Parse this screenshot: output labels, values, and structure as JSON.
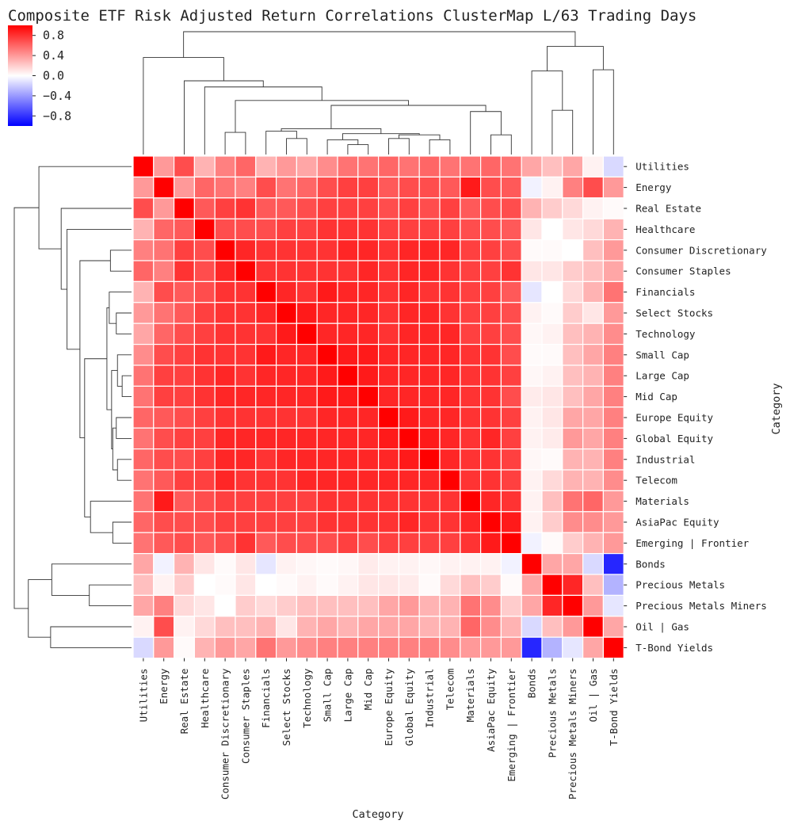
{
  "chart_data": {
    "type": "heatmap",
    "title": "Composite ETF Risk Adjusted Return Correlations ClusterMap L/63 Trading Days",
    "xlabel": "Category",
    "ylabel": "Category",
    "colormap": "bwr",
    "vmin": -1,
    "vmax": 1,
    "colorbar_ticks": [
      "0.8",
      "0.4",
      "0.0",
      "−0.4",
      "−0.8"
    ],
    "colorbar_values": [
      0.8,
      0.4,
      0.0,
      -0.4,
      -0.8
    ],
    "colors": {
      "negative": "#0000ff",
      "neutral": "#ffffff",
      "positive": "#ff0000"
    },
    "categories": [
      "Utilities",
      "Energy",
      "Real Estate",
      "Healthcare",
      "Consumer Discretionary",
      "Consumer Staples",
      "Financials",
      "Select Stocks",
      "Technology",
      "Small Cap",
      "Large Cap",
      "Mid Cap",
      "Europe Equity",
      "Global Equity",
      "Industrial",
      "Telecom",
      "Materials",
      "AsiaPac Equity",
      "Emerging | Frontier",
      "Bonds",
      "Precious Metals",
      "Precious Metals Miners",
      "Oil | Gas",
      "T-Bond Yields"
    ],
    "matrix": [
      [
        1.0,
        0.4,
        0.7,
        0.3,
        0.5,
        0.6,
        0.3,
        0.4,
        0.35,
        0.45,
        0.55,
        0.55,
        0.6,
        0.55,
        0.6,
        0.55,
        0.55,
        0.6,
        0.55,
        0.35,
        0.25,
        0.35,
        0.05,
        -0.15
      ],
      [
        0.4,
        1.0,
        0.4,
        0.6,
        0.55,
        0.5,
        0.7,
        0.55,
        0.6,
        0.7,
        0.75,
        0.75,
        0.65,
        0.7,
        0.7,
        0.65,
        0.9,
        0.7,
        0.65,
        -0.05,
        0.05,
        0.5,
        0.7,
        0.4
      ],
      [
        0.7,
        0.4,
        1.0,
        0.65,
        0.75,
        0.8,
        0.65,
        0.65,
        0.7,
        0.75,
        0.75,
        0.75,
        0.7,
        0.75,
        0.7,
        0.75,
        0.65,
        0.7,
        0.7,
        0.3,
        0.2,
        0.15,
        0.05,
        0.02
      ],
      [
        0.3,
        0.6,
        0.65,
        1.0,
        0.7,
        0.7,
        0.7,
        0.75,
        0.75,
        0.8,
        0.8,
        0.8,
        0.75,
        0.75,
        0.75,
        0.75,
        0.7,
        0.7,
        0.65,
        0.1,
        0.0,
        0.1,
        0.15,
        0.3
      ],
      [
        0.5,
        0.55,
        0.75,
        0.7,
        1.0,
        0.85,
        0.8,
        0.8,
        0.8,
        0.8,
        0.85,
        0.85,
        0.8,
        0.85,
        0.85,
        0.85,
        0.75,
        0.75,
        0.7,
        0.02,
        0.02,
        0.0,
        0.25,
        0.4
      ],
      [
        0.6,
        0.5,
        0.8,
        0.7,
        0.85,
        1.0,
        0.8,
        0.8,
        0.8,
        0.8,
        0.8,
        0.85,
        0.8,
        0.85,
        0.85,
        0.8,
        0.75,
        0.75,
        0.8,
        0.1,
        0.1,
        0.2,
        0.25,
        0.35
      ],
      [
        0.3,
        0.7,
        0.65,
        0.7,
        0.8,
        0.8,
        1.0,
        0.85,
        0.8,
        0.9,
        0.85,
        0.85,
        0.8,
        0.85,
        0.8,
        0.8,
        0.75,
        0.75,
        0.65,
        -0.1,
        0.0,
        0.15,
        0.3,
        0.55
      ],
      [
        0.4,
        0.55,
        0.65,
        0.75,
        0.8,
        0.8,
        0.85,
        1.0,
        0.9,
        0.85,
        0.85,
        0.85,
        0.8,
        0.85,
        0.85,
        0.8,
        0.75,
        0.75,
        0.7,
        0.05,
        0.02,
        0.2,
        0.1,
        0.4
      ],
      [
        0.35,
        0.6,
        0.7,
        0.75,
        0.8,
        0.8,
        0.8,
        0.9,
        1.0,
        0.85,
        0.85,
        0.85,
        0.8,
        0.85,
        0.85,
        0.85,
        0.75,
        0.75,
        0.7,
        0.03,
        0.05,
        0.25,
        0.3,
        0.45
      ],
      [
        0.45,
        0.7,
        0.75,
        0.8,
        0.8,
        0.8,
        0.9,
        0.85,
        0.85,
        1.0,
        0.9,
        0.9,
        0.85,
        0.85,
        0.85,
        0.85,
        0.8,
        0.8,
        0.7,
        0.02,
        0.02,
        0.25,
        0.35,
        0.5
      ],
      [
        0.55,
        0.75,
        0.75,
        0.8,
        0.85,
        0.8,
        0.85,
        0.85,
        0.85,
        0.9,
        1.0,
        0.9,
        0.85,
        0.85,
        0.85,
        0.85,
        0.8,
        0.8,
        0.75,
        0.03,
        0.05,
        0.25,
        0.3,
        0.5
      ],
      [
        0.55,
        0.75,
        0.75,
        0.8,
        0.85,
        0.85,
        0.85,
        0.85,
        0.85,
        0.9,
        0.9,
        1.0,
        0.85,
        0.85,
        0.85,
        0.85,
        0.8,
        0.8,
        0.7,
        0.08,
        0.1,
        0.25,
        0.35,
        0.5
      ],
      [
        0.6,
        0.65,
        0.7,
        0.75,
        0.8,
        0.8,
        0.8,
        0.8,
        0.8,
        0.85,
        0.85,
        0.85,
        1.0,
        0.9,
        0.85,
        0.85,
        0.8,
        0.8,
        0.75,
        0.05,
        0.1,
        0.35,
        0.35,
        0.5
      ],
      [
        0.55,
        0.7,
        0.75,
        0.75,
        0.85,
        0.85,
        0.85,
        0.85,
        0.85,
        0.85,
        0.85,
        0.85,
        0.9,
        1.0,
        0.9,
        0.85,
        0.8,
        0.85,
        0.75,
        0.05,
        0.08,
        0.4,
        0.35,
        0.5
      ],
      [
        0.6,
        0.7,
        0.7,
        0.75,
        0.85,
        0.85,
        0.8,
        0.85,
        0.85,
        0.85,
        0.85,
        0.85,
        0.85,
        0.9,
        1.0,
        0.85,
        0.8,
        0.8,
        0.75,
        0.03,
        0.02,
        0.3,
        0.3,
        0.5
      ],
      [
        0.55,
        0.65,
        0.75,
        0.75,
        0.85,
        0.8,
        0.8,
        0.8,
        0.85,
        0.85,
        0.85,
        0.85,
        0.85,
        0.85,
        0.85,
        1.0,
        0.8,
        0.8,
        0.75,
        0.05,
        0.15,
        0.3,
        0.3,
        0.45
      ],
      [
        0.55,
        0.9,
        0.65,
        0.7,
        0.75,
        0.75,
        0.75,
        0.75,
        0.75,
        0.8,
        0.8,
        0.8,
        0.8,
        0.8,
        0.8,
        0.8,
        1.0,
        0.85,
        0.8,
        0.05,
        0.25,
        0.55,
        0.6,
        0.4
      ],
      [
        0.6,
        0.7,
        0.7,
        0.7,
        0.75,
        0.75,
        0.75,
        0.75,
        0.75,
        0.8,
        0.8,
        0.8,
        0.8,
        0.85,
        0.8,
        0.8,
        0.85,
        1.0,
        0.9,
        0.05,
        0.2,
        0.45,
        0.45,
        0.4
      ],
      [
        0.55,
        0.65,
        0.7,
        0.65,
        0.7,
        0.8,
        0.65,
        0.7,
        0.7,
        0.7,
        0.75,
        0.7,
        0.75,
        0.75,
        0.75,
        0.75,
        0.8,
        0.9,
        1.0,
        -0.05,
        0.02,
        0.2,
        0.3,
        0.4
      ],
      [
        0.35,
        -0.05,
        0.3,
        0.1,
        0.02,
        0.1,
        -0.1,
        0.05,
        0.03,
        0.02,
        0.03,
        0.08,
        0.05,
        0.05,
        0.03,
        0.05,
        0.05,
        0.05,
        -0.05,
        1.0,
        0.35,
        0.35,
        -0.15,
        -0.85
      ],
      [
        0.25,
        0.05,
        0.2,
        0.0,
        0.02,
        0.1,
        0.0,
        0.02,
        0.05,
        0.02,
        0.05,
        0.1,
        0.1,
        0.08,
        0.02,
        0.15,
        0.25,
        0.2,
        0.02,
        0.35,
        1.0,
        0.85,
        0.25,
        -0.3
      ],
      [
        0.35,
        0.5,
        0.15,
        0.1,
        0.0,
        0.2,
        0.15,
        0.2,
        0.25,
        0.25,
        0.25,
        0.25,
        0.35,
        0.4,
        0.3,
        0.3,
        0.55,
        0.45,
        0.2,
        0.35,
        0.85,
        1.0,
        0.4,
        -0.1
      ],
      [
        0.05,
        0.7,
        0.05,
        0.15,
        0.25,
        0.25,
        0.3,
        0.1,
        0.3,
        0.35,
        0.3,
        0.35,
        0.35,
        0.35,
        0.3,
        0.3,
        0.6,
        0.45,
        0.3,
        -0.15,
        0.25,
        0.4,
        1.0,
        0.35
      ],
      [
        -0.15,
        0.4,
        0.02,
        0.3,
        0.4,
        0.35,
        0.55,
        0.4,
        0.45,
        0.5,
        0.5,
        0.5,
        0.5,
        0.5,
        0.5,
        0.45,
        0.4,
        0.4,
        0.4,
        -0.85,
        -0.3,
        -0.1,
        0.35,
        1.0
      ]
    ]
  }
}
